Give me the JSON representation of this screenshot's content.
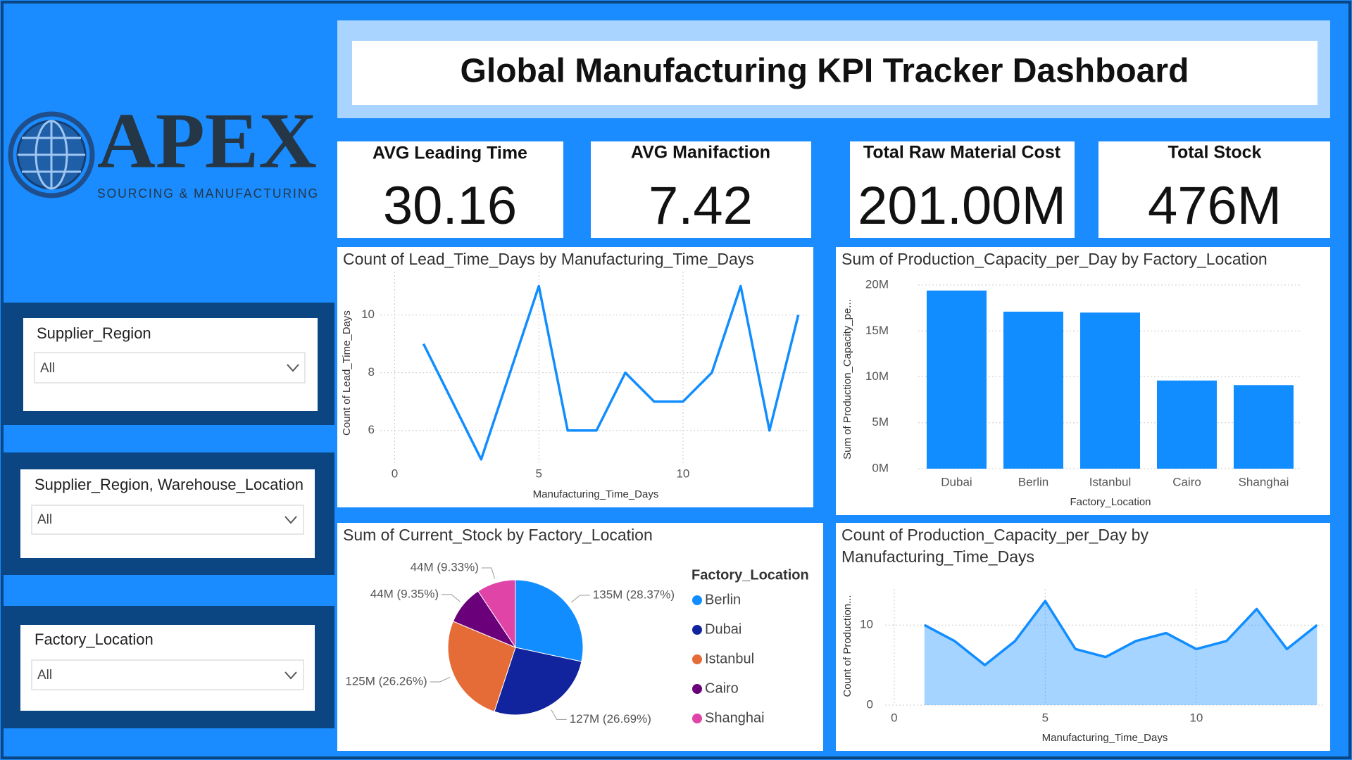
{
  "header": {
    "title": "Global Manufacturing KPI Tracker Dashboard"
  },
  "logo": {
    "name": "APEX",
    "tagline": "SOURCING & MANUFACTURING"
  },
  "kpis": [
    {
      "label": "AVG Leading Time",
      "value": "30.16"
    },
    {
      "label": "AVG Manifaction",
      "value": "7.42"
    },
    {
      "label": "Total Raw Material Cost",
      "value": "201.00M"
    },
    {
      "label": "Total Stock",
      "value": "476M"
    }
  ],
  "slicers": [
    {
      "label": "Supplier_Region",
      "selection": "All"
    },
    {
      "label": "Supplier_Region, Warehouse_Location",
      "selection": "All"
    },
    {
      "label": "Factory_Location",
      "selection": "All"
    }
  ],
  "chart_data": [
    {
      "type": "line",
      "title": "Count of Lead_Time_Days by Manufacturing_Time_Days",
      "x_label": "Manufacturing_Time_Days",
      "y_label": "Count of Lead_Time_Days",
      "x": [
        1,
        3,
        5,
        6,
        7,
        8,
        9,
        10,
        11,
        12,
        13,
        14
      ],
      "values": [
        9,
        5,
        11,
        6,
        6,
        8,
        7,
        7,
        8,
        11,
        6,
        10
      ],
      "color": "#118DFF",
      "xlim": [
        -0.5,
        14.3
      ],
      "ylim": [
        4.8,
        11.5
      ],
      "xticks": [
        0,
        5,
        10
      ],
      "yticks": [
        6,
        8,
        10
      ],
      "grid": true
    },
    {
      "type": "bar",
      "title": "Sum of Production_Capacity_per_Day by Factory_Location",
      "x_label": "Factory_Location",
      "y_label": "Sum of Production_Capacity_pe...",
      "categories": [
        "Dubai",
        "Berlin",
        "Istanbul",
        "Cairo",
        "Shanghai"
      ],
      "values": [
        19400000,
        17100000,
        17000000,
        9600000,
        9100000
      ],
      "color": "#118DFF",
      "ylim": [
        0,
        21000000
      ],
      "yticks": [
        {
          "value": 0,
          "label": "0M"
        },
        {
          "value": 5000000,
          "label": "5M"
        },
        {
          "value": 10000000,
          "label": "10M"
        },
        {
          "value": 15000000,
          "label": "15M"
        },
        {
          "value": 20000000,
          "label": "20M"
        }
      ],
      "grid": true
    },
    {
      "type": "pie",
      "title": "Sum of Current_Stock by Factory_Location",
      "legend_title": "Factory_Location",
      "categories": [
        "Berlin",
        "Dubai",
        "Istanbul",
        "Cairo",
        "Shanghai"
      ],
      "values": [
        28.37,
        26.69,
        26.26,
        9.35,
        9.33
      ],
      "value_labels": [
        "135M (28.37%)",
        "127M (26.69%)",
        "125M (26.26%)",
        "44M (9.35%)",
        "44M (9.33%)"
      ],
      "colors": [
        "#118DFF",
        "#12239E",
        "#E66C37",
        "#6B007B",
        "#E044A7"
      ]
    },
    {
      "type": "area",
      "title": "Count of Production_Capacity_per_Day by Manufacturing_Time_Days",
      "x_label": "Manufacturing_Time_Days",
      "y_label": "Count of Production...",
      "x": [
        1,
        2,
        3,
        4,
        5,
        6,
        7,
        8,
        9,
        10,
        11,
        12,
        13,
        14
      ],
      "values": [
        10,
        8,
        5,
        8,
        13,
        7,
        6,
        8,
        9,
        7,
        8,
        12,
        7,
        10
      ],
      "color": "#118DFF",
      "xlim": [
        -0.3,
        14.2
      ],
      "ylim": [
        0,
        14.5
      ],
      "xticks": [
        0,
        5,
        10
      ],
      "yticks": [
        0,
        10
      ],
      "grid": true
    }
  ]
}
